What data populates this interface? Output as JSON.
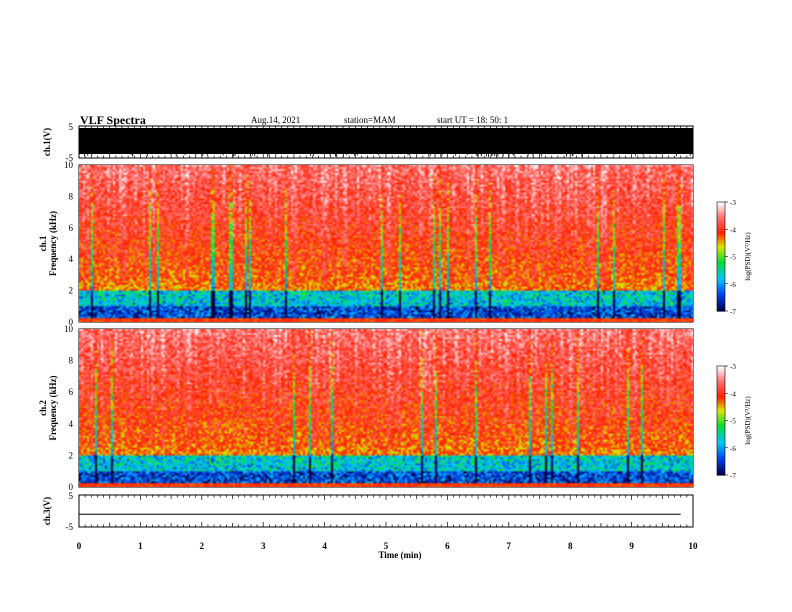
{
  "header": {
    "title": "VLF Spectra",
    "date": "Aug.14, 2021",
    "station": "station=MAM",
    "start": "start  UT =   18: 50: 1"
  },
  "chart_data": [
    {
      "type": "line",
      "name": "ch1-waveform",
      "ylabel": "ch.1(V)",
      "ylim": [
        -5,
        5
      ],
      "yticks": [
        "5",
        "-5"
      ],
      "xlim": [
        0,
        10
      ],
      "description_values": "dense black voltage trace saturating full range",
      "x": [
        0,
        10
      ],
      "y": [
        -5,
        5
      ]
    },
    {
      "type": "heatmap",
      "name": "ch1-spectrogram",
      "ylabel": "ch.1\nFrequency (kHz)",
      "ylim": [
        0,
        10
      ],
      "yticks": [
        "0",
        "2",
        "4",
        "6",
        "8",
        "10"
      ],
      "xlim": [
        0,
        10
      ],
      "colorbar": {
        "label": "log(PSD)(V²/Hz)",
        "range": [
          -7,
          -3
        ],
        "ticks": [
          "-3",
          "-4",
          "-5",
          "-6",
          "-7"
        ]
      }
    },
    {
      "type": "heatmap",
      "name": "ch2-spectrogram",
      "ylabel": "ch.2\nFrequency (kHz)",
      "ylim": [
        0,
        10
      ],
      "yticks": [
        "0",
        "2",
        "4",
        "6",
        "8",
        "10"
      ],
      "xlim": [
        0,
        10
      ],
      "colorbar": {
        "label": "log(PSD)(V²/Hz)",
        "range": [
          -7,
          -3
        ],
        "ticks": [
          "-3",
          "-4",
          "-5",
          "-6",
          "-7"
        ]
      }
    },
    {
      "type": "line",
      "name": "ch3-waveform",
      "ylabel": "ch.3(V)",
      "ylim": [
        -5,
        5
      ],
      "yticks": [
        "5",
        "-5"
      ],
      "xlim": [
        0,
        10
      ],
      "x": [
        0,
        9.8
      ],
      "y": [
        -1,
        -1
      ]
    }
  ],
  "xaxis": {
    "label": "Time (min)",
    "ticks": [
      "0",
      "1",
      "2",
      "3",
      "4",
      "5",
      "6",
      "7",
      "8",
      "9",
      "10"
    ],
    "range": [
      0,
      10
    ]
  }
}
